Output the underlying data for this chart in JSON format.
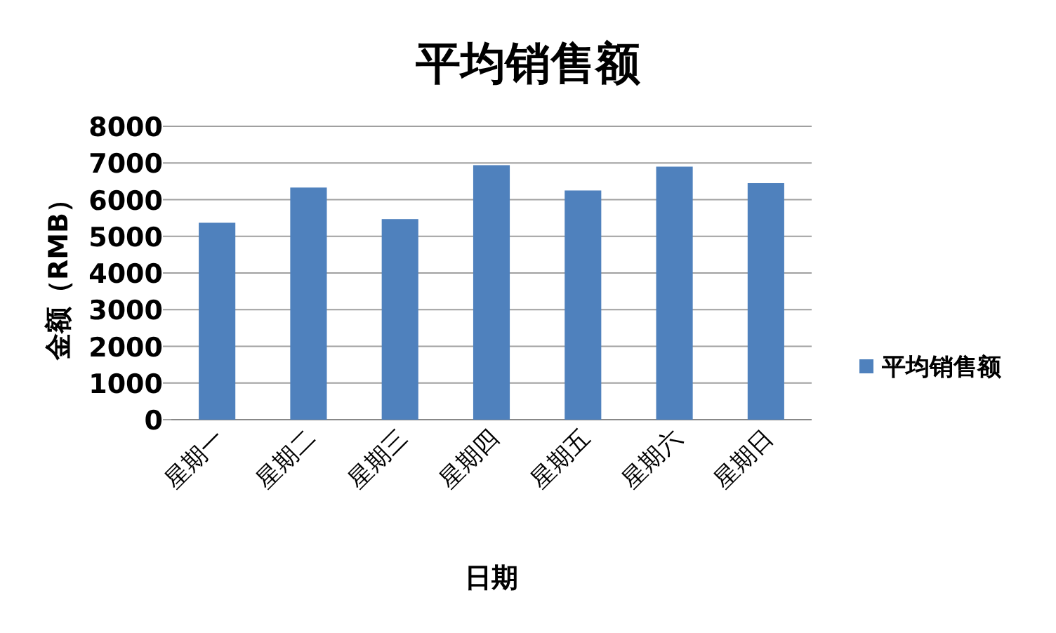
{
  "chart_data": {
    "type": "bar",
    "title": "平均销售额",
    "xlabel": "日期",
    "ylabel": "金额（RMB）",
    "categories": [
      "星期一",
      "星期二",
      "星期三",
      "星期四",
      "星期五",
      "星期六",
      "星期日"
    ],
    "series": [
      {
        "name": "平均销售额",
        "color": "#4f81bd",
        "values": [
          5370,
          6330,
          5470,
          6940,
          6250,
          6900,
          6450
        ]
      }
    ],
    "ylim": [
      0,
      8000
    ],
    "yticks": [
      0,
      1000,
      2000,
      3000,
      4000,
      5000,
      6000,
      7000,
      8000
    ],
    "grid": "y",
    "legend": "right"
  }
}
